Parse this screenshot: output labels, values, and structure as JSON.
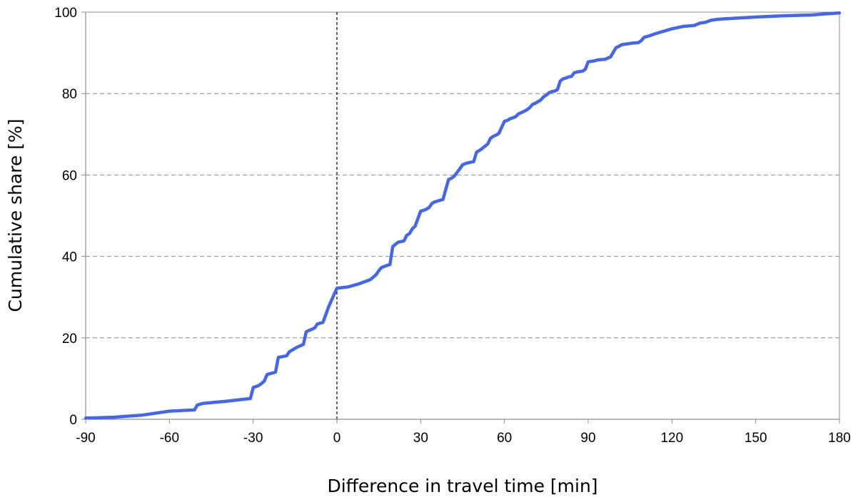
{
  "chart_data": {
    "type": "line",
    "title": "",
    "xlabel": "Difference in travel time [min]",
    "ylabel": "Cumulative share [%]",
    "xlim": [
      -90,
      180
    ],
    "ylim": [
      0,
      100
    ],
    "x_ticks": [
      -90,
      -60,
      -30,
      0,
      30,
      60,
      90,
      120,
      150,
      180
    ],
    "y_ticks": [
      0,
      20,
      40,
      60,
      80,
      100
    ],
    "x_tick_labels": [
      "-90",
      "-60",
      "-30",
      "0",
      "30",
      "60",
      "90",
      "120",
      "150",
      "180"
    ],
    "y_tick_labels": [
      "0",
      "20",
      "40",
      "60",
      "80",
      "100"
    ],
    "grid": "horizontal dashed",
    "reference_line": {
      "x": 0,
      "style": "dashed"
    },
    "legend": "none",
    "series": [
      {
        "color": "#4466ee",
        "x": [
          -90,
          -80,
          -70,
          -60,
          -51,
          -50,
          -48,
          -45,
          -40,
          -35,
          -31,
          -30,
          -28,
          -27,
          -26,
          -25,
          -22,
          -21,
          -18,
          -17,
          -15,
          -14,
          -12,
          -11,
          -8,
          -7,
          -5,
          -4,
          -3,
          0,
          4,
          6,
          8,
          10,
          12,
          14,
          15,
          16,
          18,
          19,
          20,
          21,
          22,
          24,
          25,
          26,
          27,
          28,
          30,
          31,
          32,
          33,
          34,
          35,
          38,
          40,
          41,
          42,
          44,
          45,
          46,
          47,
          49,
          50,
          51,
          52,
          54,
          55,
          56,
          57,
          58,
          60,
          61,
          62,
          64,
          65,
          66,
          67,
          68,
          69,
          70,
          71,
          72,
          73,
          74,
          75,
          76,
          77,
          78,
          79,
          80,
          81,
          82,
          83,
          84,
          85,
          86,
          87,
          88,
          89,
          90,
          92,
          93,
          94,
          96,
          97,
          98,
          100,
          101,
          102,
          104,
          106,
          108,
          109,
          110,
          112,
          114,
          116,
          118,
          120,
          122,
          124,
          126,
          128,
          130,
          132,
          134,
          136,
          140,
          150,
          160,
          170,
          180
        ],
        "y": [
          0.3,
          0.5,
          1.0,
          2.0,
          2.3,
          3.5,
          3.9,
          4.1,
          4.4,
          4.8,
          5.1,
          7.8,
          8.3,
          8.8,
          9.4,
          11.0,
          11.6,
          15.2,
          15.6,
          16.6,
          17.4,
          17.8,
          18.4,
          21.5,
          22.4,
          23.4,
          23.8,
          25.7,
          27.6,
          32.2,
          32.5,
          32.9,
          33.3,
          33.8,
          34.3,
          35.5,
          36.5,
          37.3,
          37.8,
          38.0,
          42.4,
          43.0,
          43.5,
          43.8,
          45.2,
          45.6,
          46.8,
          47.4,
          51.1,
          51.3,
          51.6,
          52.0,
          53.0,
          53.4,
          54.0,
          58.9,
          59.2,
          59.7,
          61.5,
          62.5,
          62.8,
          63.0,
          63.3,
          65.6,
          66.0,
          66.5,
          67.6,
          69.0,
          69.5,
          69.8,
          70.2,
          73.2,
          73.4,
          73.8,
          74.3,
          75.0,
          75.3,
          75.6,
          76.0,
          76.5,
          77.3,
          77.6,
          78.0,
          78.4,
          79.2,
          79.6,
          80.2,
          80.5,
          80.6,
          81.0,
          83.1,
          83.6,
          83.8,
          84.1,
          84.2,
          85.1,
          85.3,
          85.4,
          85.5,
          86.0,
          87.8,
          88.0,
          88.2,
          88.3,
          88.4,
          88.7,
          89.0,
          91.3,
          91.6,
          92.0,
          92.2,
          92.4,
          92.5,
          93.0,
          93.8,
          94.2,
          94.7,
          95.1,
          95.5,
          95.9,
          96.2,
          96.5,
          96.6,
          96.7,
          97.3,
          97.5,
          98.0,
          98.2,
          98.4,
          98.8,
          99.1,
          99.3,
          99.8
        ]
      }
    ]
  }
}
